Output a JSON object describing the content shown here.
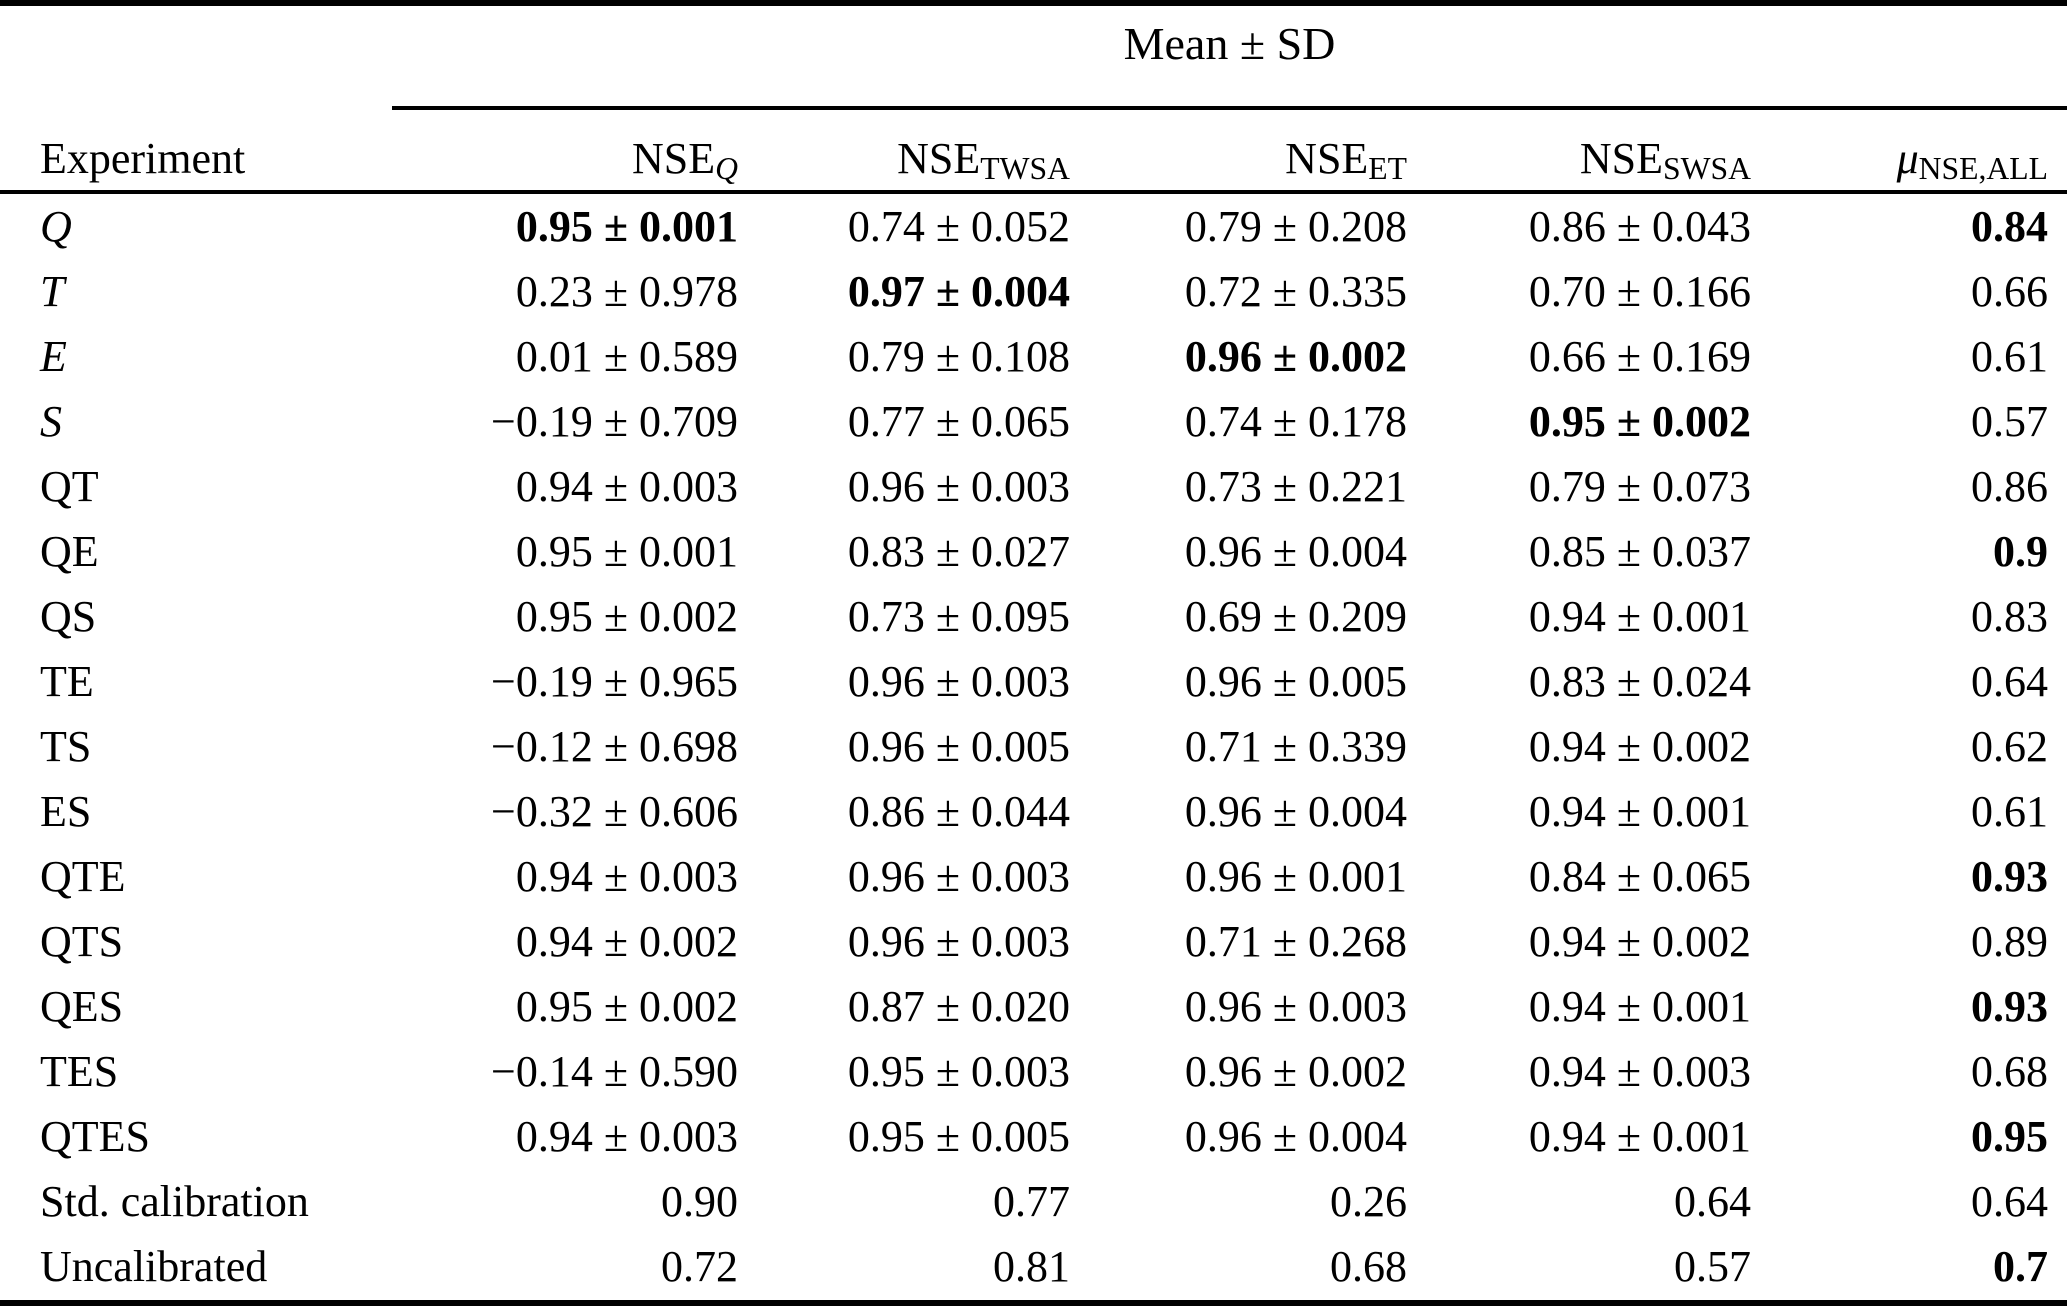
{
  "table": {
    "background_color": "#ffffff",
    "text_color": "#000000",
    "group_header": "Mean ± SD",
    "experiment_header": "Experiment",
    "columns": [
      {
        "base": "NSE",
        "sub": "Q"
      },
      {
        "base": "NSE",
        "sub": "TWSA"
      },
      {
        "base": "NSE",
        "sub": "ET"
      },
      {
        "base": "NSE",
        "sub": "SWSA"
      },
      {
        "base": "μ",
        "sub": "NSE,ALL"
      }
    ],
    "rows": [
      {
        "label": "Q",
        "italic": true,
        "cells": [
          {
            "text": "0.95 ± 0.001",
            "bold": true
          },
          {
            "text": "0.74 ± 0.052"
          },
          {
            "text": "0.79 ± 0.208"
          },
          {
            "text": "0.86 ± 0.043"
          },
          {
            "text": "0.84",
            "bold": true
          }
        ]
      },
      {
        "label": "T",
        "italic": true,
        "cells": [
          {
            "text": "0.23 ± 0.978"
          },
          {
            "text": "0.97 ± 0.004",
            "bold": true
          },
          {
            "text": "0.72 ± 0.335"
          },
          {
            "text": "0.70 ± 0.166"
          },
          {
            "text": "0.66"
          }
        ]
      },
      {
        "label": "E",
        "italic": true,
        "cells": [
          {
            "text": "0.01 ± 0.589"
          },
          {
            "text": "0.79 ± 0.108"
          },
          {
            "text": "0.96 ± 0.002",
            "bold": true
          },
          {
            "text": "0.66 ± 0.169"
          },
          {
            "text": "0.61"
          }
        ]
      },
      {
        "label": "S",
        "italic": true,
        "cells": [
          {
            "text": "−0.19 ± 0.709"
          },
          {
            "text": "0.77 ± 0.065"
          },
          {
            "text": "0.74 ± 0.178"
          },
          {
            "text": "0.95 ± 0.002",
            "bold": true
          },
          {
            "text": "0.57"
          }
        ]
      },
      {
        "label": "QT",
        "italic": false,
        "cells": [
          {
            "text": "0.94 ± 0.003"
          },
          {
            "text": "0.96 ± 0.003"
          },
          {
            "text": "0.73 ± 0.221"
          },
          {
            "text": "0.79 ± 0.073"
          },
          {
            "text": "0.86"
          }
        ]
      },
      {
        "label": "QE",
        "italic": false,
        "cells": [
          {
            "text": "0.95 ± 0.001"
          },
          {
            "text": "0.83 ± 0.027"
          },
          {
            "text": "0.96 ± 0.004"
          },
          {
            "text": "0.85 ± 0.037"
          },
          {
            "text": "0.9",
            "bold": true
          }
        ]
      },
      {
        "label": "QS",
        "italic": false,
        "cells": [
          {
            "text": "0.95 ± 0.002"
          },
          {
            "text": "0.73 ± 0.095"
          },
          {
            "text": "0.69 ± 0.209"
          },
          {
            "text": "0.94 ± 0.001"
          },
          {
            "text": "0.83"
          }
        ]
      },
      {
        "label": "TE",
        "italic": false,
        "cells": [
          {
            "text": "−0.19 ± 0.965"
          },
          {
            "text": "0.96 ± 0.003"
          },
          {
            "text": "0.96 ± 0.005"
          },
          {
            "text": "0.83 ± 0.024"
          },
          {
            "text": "0.64"
          }
        ]
      },
      {
        "label": "TS",
        "italic": false,
        "cells": [
          {
            "text": "−0.12 ± 0.698"
          },
          {
            "text": "0.96 ± 0.005"
          },
          {
            "text": "0.71 ± 0.339"
          },
          {
            "text": "0.94 ± 0.002"
          },
          {
            "text": "0.62"
          }
        ]
      },
      {
        "label": "ES",
        "italic": false,
        "cells": [
          {
            "text": "−0.32 ± 0.606"
          },
          {
            "text": "0.86 ± 0.044"
          },
          {
            "text": "0.96 ± 0.004"
          },
          {
            "text": "0.94 ± 0.001"
          },
          {
            "text": "0.61"
          }
        ]
      },
      {
        "label": "QTE",
        "italic": false,
        "cells": [
          {
            "text": "0.94 ± 0.003"
          },
          {
            "text": "0.96 ± 0.003"
          },
          {
            "text": "0.96 ± 0.001"
          },
          {
            "text": "0.84 ± 0.065"
          },
          {
            "text": "0.93",
            "bold": true
          }
        ]
      },
      {
        "label": "QTS",
        "italic": false,
        "cells": [
          {
            "text": "0.94 ± 0.002"
          },
          {
            "text": "0.96 ± 0.003"
          },
          {
            "text": "0.71 ± 0.268"
          },
          {
            "text": "0.94 ± 0.002"
          },
          {
            "text": "0.89"
          }
        ]
      },
      {
        "label": "QES",
        "italic": false,
        "cells": [
          {
            "text": "0.95 ± 0.002"
          },
          {
            "text": "0.87 ± 0.020"
          },
          {
            "text": "0.96 ± 0.003"
          },
          {
            "text": "0.94 ± 0.001"
          },
          {
            "text": "0.93",
            "bold": true
          }
        ]
      },
      {
        "label": "TES",
        "italic": false,
        "cells": [
          {
            "text": "−0.14 ± 0.590"
          },
          {
            "text": "0.95 ± 0.003"
          },
          {
            "text": "0.96 ± 0.002"
          },
          {
            "text": "0.94 ± 0.003"
          },
          {
            "text": "0.68"
          }
        ]
      },
      {
        "label": "QTES",
        "italic": false,
        "cells": [
          {
            "text": "0.94 ± 0.003"
          },
          {
            "text": "0.95 ± 0.005"
          },
          {
            "text": "0.96 ± 0.004"
          },
          {
            "text": "0.94 ± 0.001"
          },
          {
            "text": "0.95",
            "bold": true
          }
        ]
      },
      {
        "label": "Std. calibration",
        "italic": false,
        "cells": [
          {
            "text": "0.90"
          },
          {
            "text": "0.77"
          },
          {
            "text": "0.26"
          },
          {
            "text": "0.64"
          },
          {
            "text": "0.64"
          }
        ]
      },
      {
        "label": "Uncalibrated",
        "italic": false,
        "cells": [
          {
            "text": "0.72"
          },
          {
            "text": "0.81"
          },
          {
            "text": "0.68"
          },
          {
            "text": "0.57"
          },
          {
            "text": "0.7",
            "bold": true
          }
        ]
      }
    ]
  }
}
